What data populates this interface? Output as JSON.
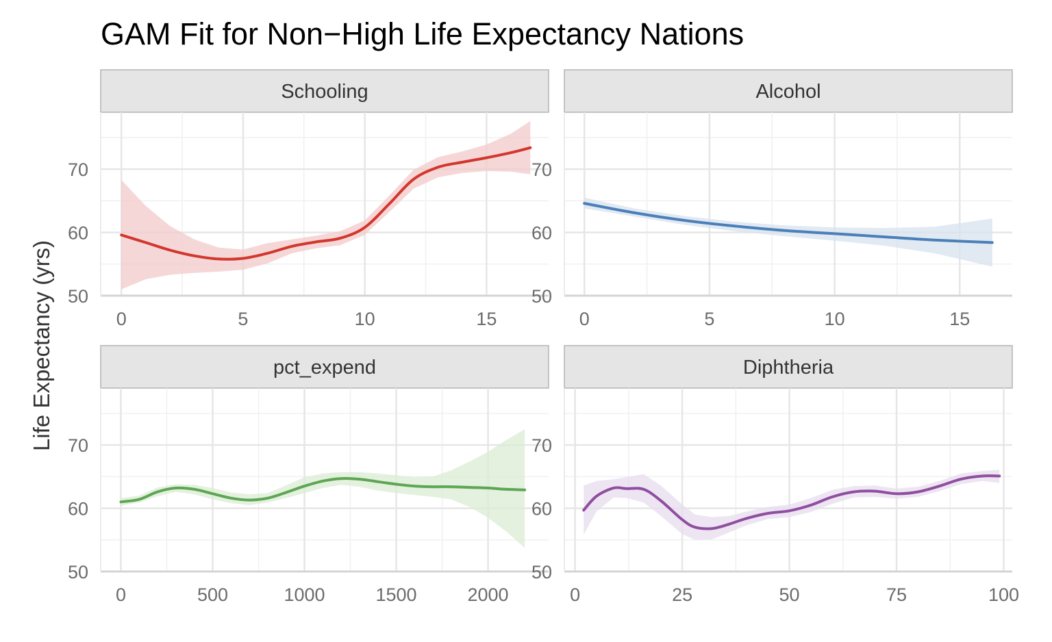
{
  "title": "GAM Fit for Non−High Life Expectancy Nations",
  "ylabel": "Life Expectancy (yrs)",
  "chart_data": [
    {
      "type": "line",
      "panel": "Schooling",
      "xticks": [
        0,
        5,
        10,
        15
      ],
      "xlim": [
        -0.85,
        17.55
      ],
      "yticks": [
        50,
        60,
        70
      ],
      "ylim": [
        50,
        79
      ],
      "color": "#d2372d",
      "fill_color": "#f3c9cb",
      "x": [
        0,
        1,
        2,
        3,
        4,
        5,
        6,
        7,
        8,
        9,
        10,
        11,
        12,
        13,
        14,
        15,
        16,
        16.8
      ],
      "fit": [
        59.6,
        58.4,
        57.2,
        56.3,
        55.8,
        55.9,
        56.7,
        57.8,
        58.5,
        59.1,
        60.8,
        64.5,
        68.4,
        70.3,
        71.1,
        71.8,
        72.6,
        73.4
      ],
      "lower": [
        51.0,
        52.6,
        53.3,
        53.6,
        53.8,
        54.1,
        55.1,
        56.7,
        57.5,
        58.0,
        59.6,
        63.2,
        66.9,
        68.7,
        69.4,
        69.7,
        69.6,
        69.2
      ],
      "upper": [
        68.3,
        64.2,
        61.0,
        58.9,
        57.6,
        57.3,
        58.3,
        58.9,
        59.5,
        60.2,
        61.9,
        65.8,
        69.9,
        71.9,
        72.8,
        73.9,
        75.6,
        77.6
      ]
    },
    {
      "type": "line",
      "panel": "Alcohol",
      "xticks": [
        0,
        5,
        10,
        15
      ],
      "xlim": [
        -0.8,
        17.1
      ],
      "yticks": [
        50,
        60,
        70
      ],
      "ylim": [
        50,
        79
      ],
      "color": "#4a7fb8",
      "fill_color": "#d7e2ef",
      "x": [
        0,
        2,
        4,
        6,
        8,
        10,
        12,
        14,
        16.3
      ],
      "fit": [
        64.6,
        63.1,
        61.9,
        61.0,
        60.3,
        59.8,
        59.3,
        58.8,
        58.4
      ],
      "lower": [
        63.8,
        62.5,
        61.2,
        60.2,
        59.4,
        58.7,
        57.9,
        56.7,
        54.6
      ],
      "upper": [
        65.5,
        63.8,
        62.6,
        61.7,
        61.1,
        60.8,
        60.7,
        60.9,
        62.2
      ]
    },
    {
      "type": "line",
      "panel": "pct_expend",
      "xticks": [
        0,
        500,
        1000,
        1500,
        2000
      ],
      "xlim": [
        -110,
        2330
      ],
      "yticks": [
        50,
        60,
        70
      ],
      "ylim": [
        50,
        79
      ],
      "color": "#5ea653",
      "fill_color": "#d9ecd3",
      "x": [
        0,
        100,
        200,
        300,
        400,
        500,
        600,
        700,
        800,
        900,
        1000,
        1100,
        1200,
        1300,
        1400,
        1500,
        1600,
        1700,
        1800,
        1900,
        2000,
        2100,
        2200
      ],
      "fit": [
        61.0,
        61.4,
        62.6,
        63.2,
        63.0,
        62.3,
        61.6,
        61.3,
        61.6,
        62.5,
        63.5,
        64.3,
        64.7,
        64.6,
        64.2,
        63.8,
        63.5,
        63.4,
        63.4,
        63.3,
        63.2,
        63.0,
        62.9
      ],
      "lower": [
        60.4,
        60.9,
        61.9,
        62.6,
        62.2,
        61.4,
        60.8,
        60.5,
        60.9,
        61.6,
        62.4,
        63.2,
        63.7,
        63.4,
        62.8,
        62.4,
        62.1,
        61.8,
        61.4,
        60.2,
        58.5,
        56.3,
        53.7
      ],
      "upper": [
        61.6,
        62.0,
        63.3,
        63.8,
        63.7,
        63.2,
        62.5,
        62.2,
        62.4,
        63.6,
        64.9,
        65.5,
        65.7,
        65.7,
        65.5,
        65.2,
        64.9,
        65.0,
        66.0,
        67.4,
        68.9,
        70.8,
        72.5
      ]
    },
    {
      "type": "line",
      "panel": "Diphtheria",
      "xticks": [
        0,
        25,
        50,
        75,
        100
      ],
      "xlim": [
        -2.5,
        102
      ],
      "yticks": [
        50,
        60,
        70
      ],
      "ylim": [
        50,
        79
      ],
      "color": "#8f4e9f",
      "fill_color": "#e8dcef",
      "x": [
        2,
        5,
        9,
        12,
        16,
        20,
        25,
        28,
        32,
        36,
        40,
        45,
        50,
        55,
        60,
        65,
        70,
        75,
        80,
        85,
        90,
        95,
        99
      ],
      "fit": [
        59.7,
        61.9,
        63.2,
        63.1,
        63.0,
        61.2,
        58.2,
        57.0,
        56.8,
        57.5,
        58.4,
        59.2,
        59.6,
        60.5,
        61.8,
        62.6,
        62.7,
        62.3,
        62.6,
        63.5,
        64.6,
        65.1,
        65.1
      ],
      "lower": [
        55.8,
        59.5,
        61.7,
        61.6,
        60.9,
        58.8,
        55.9,
        55.0,
        55.1,
        56.2,
        57.3,
        58.3,
        58.6,
        59.4,
        60.7,
        61.7,
        61.8,
        61.5,
        61.8,
        62.7,
        63.8,
        64.3,
        64.0
      ],
      "upper": [
        63.6,
        64.3,
        64.6,
        64.9,
        65.4,
        63.6,
        60.6,
        59.0,
        58.6,
        58.8,
        59.5,
        60.2,
        60.6,
        61.6,
        62.9,
        63.5,
        63.6,
        63.1,
        63.4,
        64.3,
        65.5,
        65.9,
        66.1
      ]
    }
  ]
}
